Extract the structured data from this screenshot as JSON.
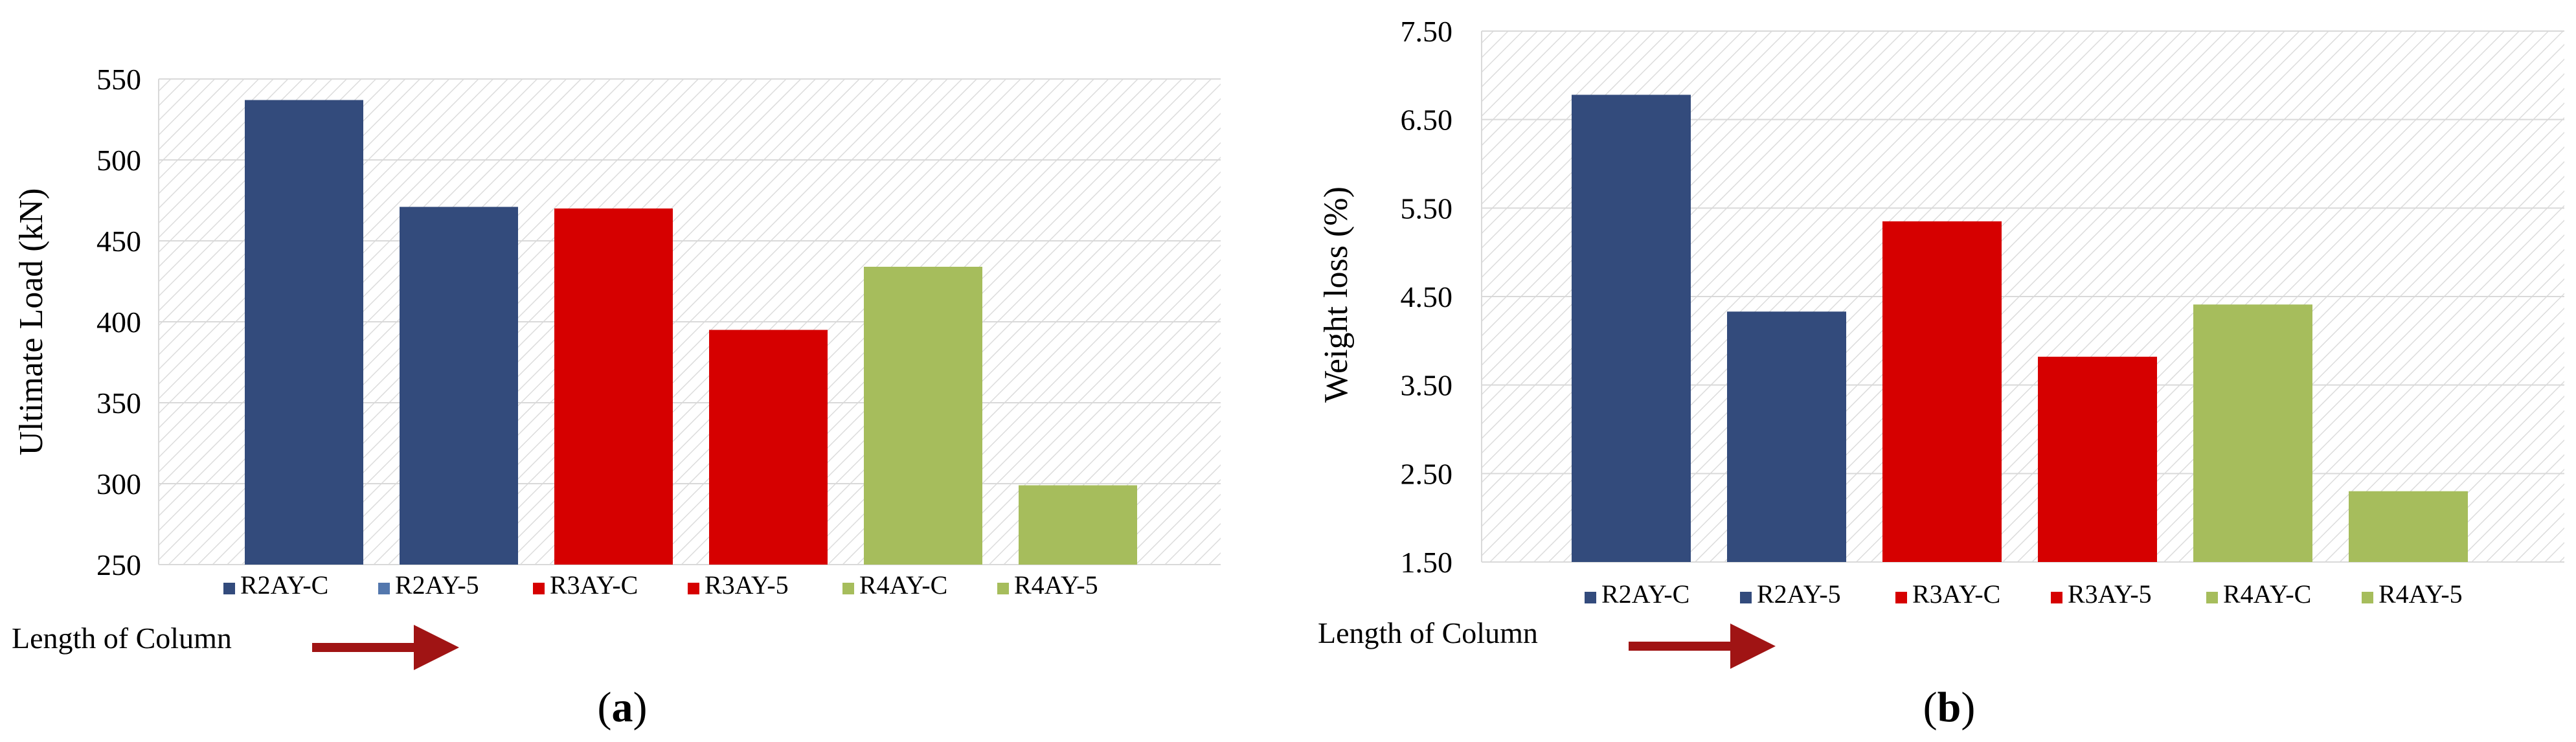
{
  "chart_data": [
    {
      "type": "bar",
      "ylabel": "Ultimate Load (kN)",
      "ylim": [
        250,
        550
      ],
      "yticks": [
        250,
        300,
        350,
        400,
        450,
        500,
        550
      ],
      "categories": [
        "R2AY-C",
        "R2AY-5",
        "R3AY-C",
        "R3AY-5",
        "R4AY-C",
        "R4AY-5"
      ],
      "values": [
        537,
        471,
        470,
        395,
        434,
        299
      ],
      "colors": [
        "#334b7c",
        "#334b7c",
        "#d60000",
        "#d60000",
        "#a6bd5c",
        "#a6bd5c"
      ],
      "legend_colors": [
        "#334b7c",
        "#5377ad",
        "#d60000",
        "#d60000",
        "#a6bd5c",
        "#a6bd5c"
      ],
      "legend_position": "bottom",
      "grid": true,
      "background": "diagonal-hatch",
      "annotation": "Length of Column",
      "panel_label": "a"
    },
    {
      "type": "bar",
      "ylabel": "Weight loss (%)",
      "ylim": [
        1.5,
        7.5
      ],
      "yticks": [
        "1.50",
        "2.50",
        "3.50",
        "4.50",
        "5.50",
        "6.50",
        "7.50"
      ],
      "categories": [
        "R2AY-C",
        "R2AY-5",
        "R3AY-C",
        "R3AY-5",
        "R4AY-C",
        "R4AY-5"
      ],
      "values": [
        6.78,
        4.33,
        5.35,
        3.82,
        4.41,
        2.3
      ],
      "colors": [
        "#334b7c",
        "#334b7c",
        "#d60000",
        "#d60000",
        "#a6bd5c",
        "#a6bd5c"
      ],
      "legend_colors": [
        "#334b7c",
        "#334b7c",
        "#d60000",
        "#d60000",
        "#a6bd5c",
        "#a6bd5c"
      ],
      "legend_position": "bottom",
      "grid": true,
      "background": "diagonal-hatch",
      "annotation": "Length of Column",
      "panel_label": "b"
    }
  ]
}
